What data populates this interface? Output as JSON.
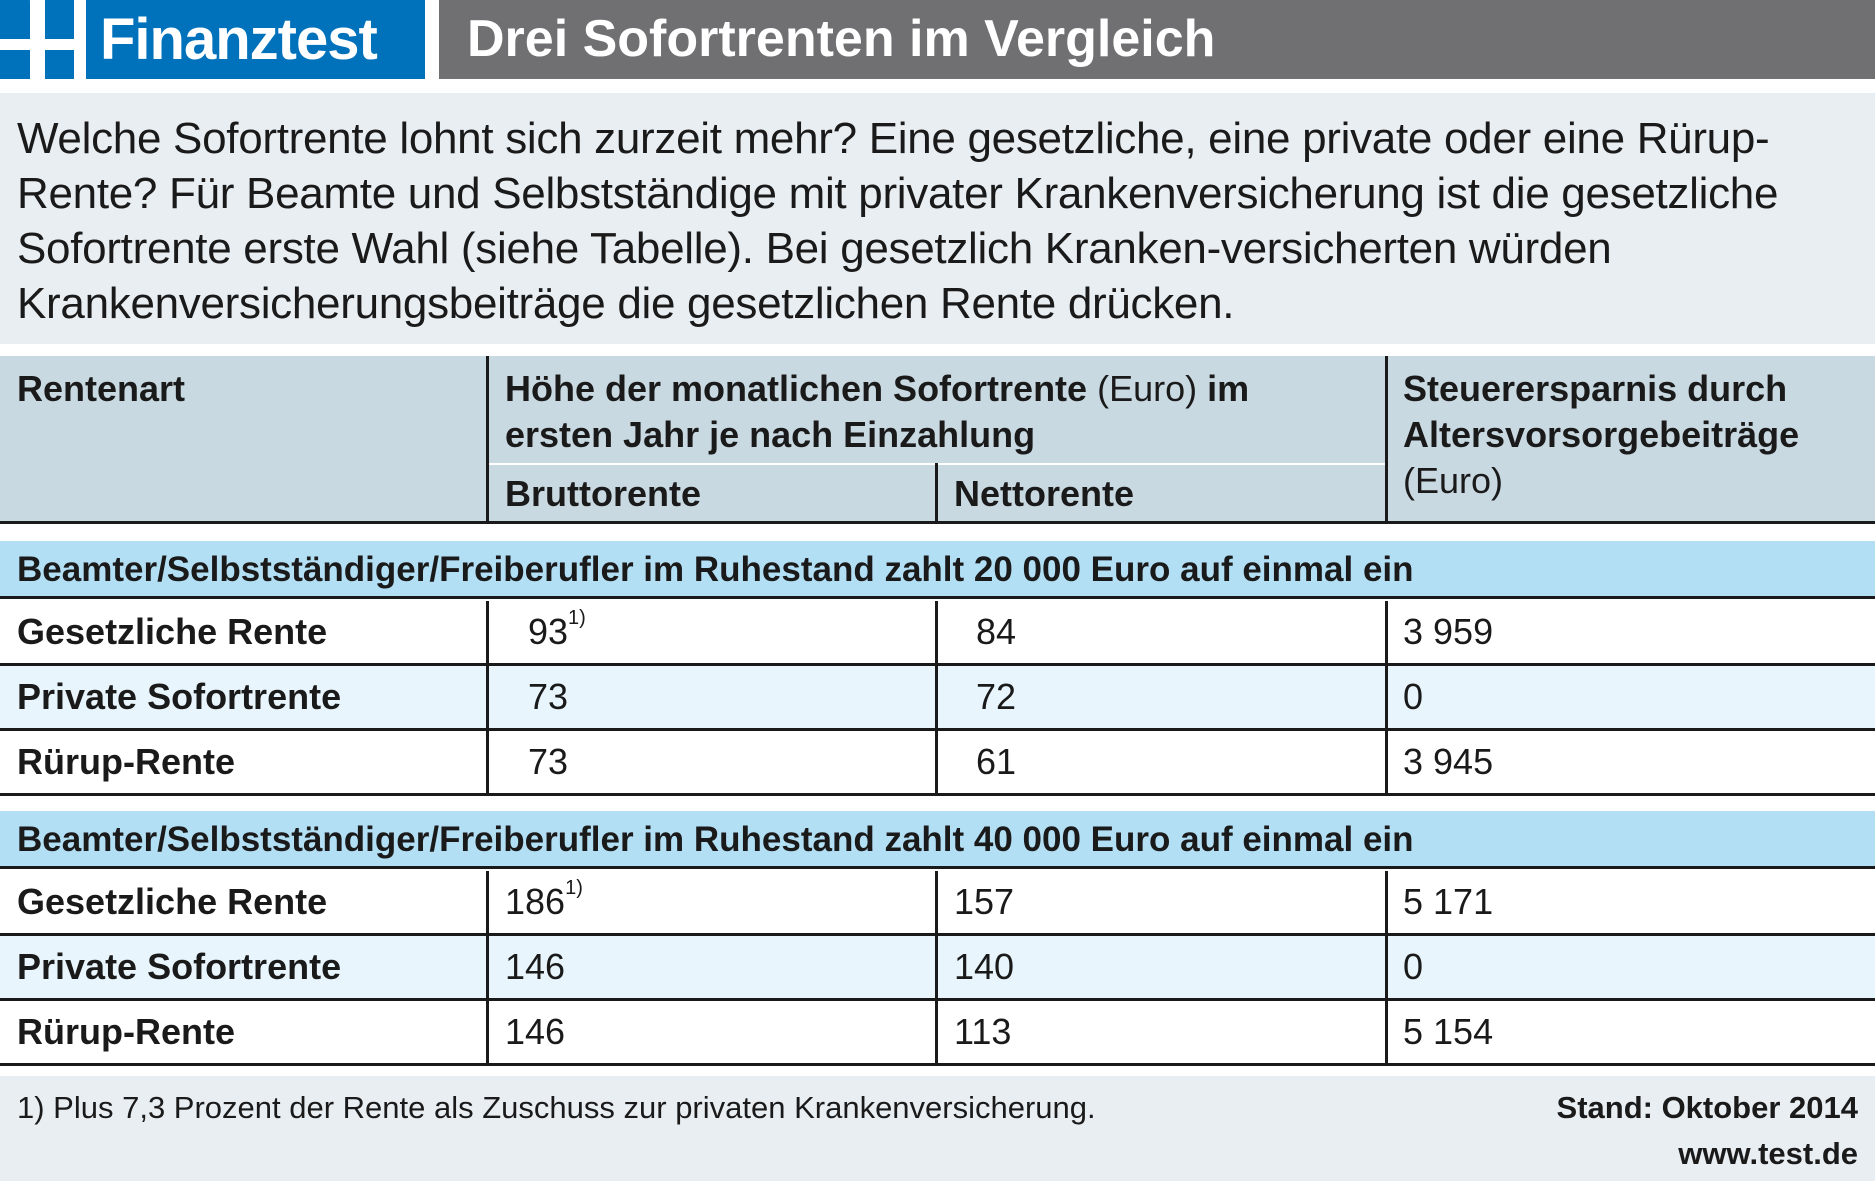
{
  "header": {
    "brand": "Finanztest",
    "title": "Drei Sofortrenten im Vergleich",
    "brand_color": "#0072bc",
    "title_bg": "#707072"
  },
  "intro": "Welche Sofortrente lohnt sich zurzeit mehr? Eine gesetzliche, eine private oder eine Rürup-Rente? Für Beamte und Selbstständige mit privater Krankenversicherung ist die gesetzliche Sofortrente erste Wahl (siehe Tabelle). Bei gesetzlich Kranken-versicherten würden Krankenversicherungsbeiträge die gesetzlichen Rente drücken.",
  "table": {
    "headers": {
      "rentenart": "Rentenart",
      "hoehe_bold1": "Höhe der monatlichen Sofortrente",
      "hoehe_unit": "(Euro)",
      "hoehe_bold2": "im",
      "hoehe_line2": "ersten Jahr je nach Einzahlung",
      "brutto": "Bruttorente",
      "netto": "Nettorente",
      "steuer_line1": "Steuerersparnis durch",
      "steuer_line2": "Altersvorsorgebeiträge",
      "steuer_unit": "(Euro)"
    },
    "sections": [
      {
        "title": "Beamter/Selbstständiger/Freiberufler im Ruhestand zahlt 20 000 Euro auf einmal ein",
        "rows": [
          {
            "name": "Gesetzliche Rente",
            "brutto": "93",
            "note": "1)",
            "netto": "84",
            "steuer": "3 959"
          },
          {
            "name": "Private Sofortrente",
            "brutto": "73",
            "note": "",
            "netto": "72",
            "steuer": "0"
          },
          {
            "name": "Rürup-Rente",
            "brutto": "73",
            "note": "",
            "netto": "61",
            "steuer": "3 945"
          }
        ]
      },
      {
        "title": "Beamter/Selbstständiger/Freiberufler im Ruhestand zahlt 40 000 Euro auf einmal ein",
        "rows": [
          {
            "name": "Gesetzliche Rente",
            "brutto": "186",
            "note": "1)",
            "netto": "157",
            "steuer": "5 171"
          },
          {
            "name": "Private Sofortrente",
            "brutto": "146",
            "note": "",
            "netto": "140",
            "steuer": "0"
          },
          {
            "name": "Rürup-Rente",
            "brutto": "146",
            "note": "",
            "netto": "113",
            "steuer": "5 154"
          }
        ]
      }
    ]
  },
  "footer": {
    "note": "1) Plus 7,3 Prozent der Rente als Zuschuss zur privaten Krankenversicherung.",
    "stand": "Stand: Oktober 2014",
    "url": "www.test.de"
  }
}
